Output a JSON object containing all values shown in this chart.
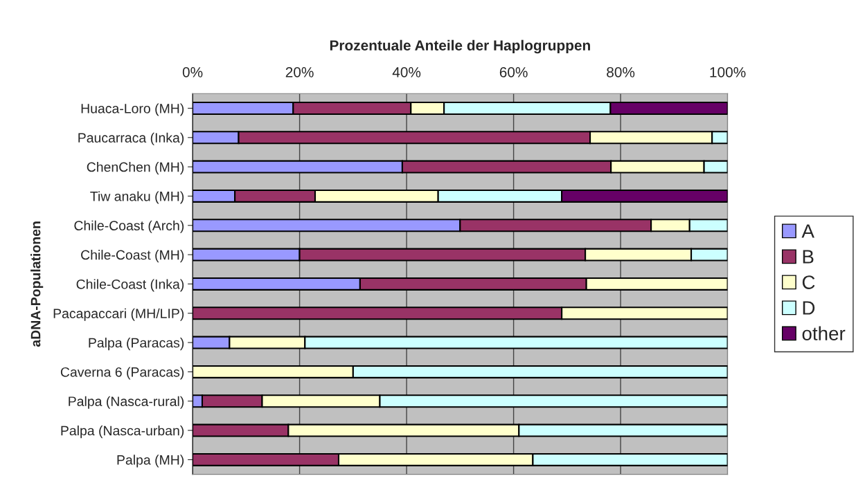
{
  "chart_data": {
    "type": "bar",
    "orientation": "horizontal",
    "stacked": true,
    "title": "Prozentuale Anteile der Haplogruppen",
    "ylabel": "aDNA-Populationen",
    "categories": [
      "Huaca-Loro (MH)",
      "Paucarraca (Inka)",
      "ChenChen (MH)",
      "Tiw anaku (MH)",
      "Chile-Coast (Arch)",
      "Chile-Coast (MH)",
      "Chile-Coast (Inka)",
      "Pacapaccari (MH/LIP)",
      "Palpa (Paracas)",
      "Caverna 6 (Paracas)",
      "Palpa (Nasca-rural)",
      "Palpa (Nasca-urban)",
      "Palpa (MH)"
    ],
    "series": [
      {
        "name": "A",
        "color": "#9999ff",
        "values": [
          18.8,
          8.6,
          39.2,
          7.9,
          50,
          20,
          31.3,
          0,
          6.9,
          0,
          1.8,
          0,
          0
        ]
      },
      {
        "name": "B",
        "color": "#993366",
        "values": [
          22,
          65.7,
          39,
          15,
          35.7,
          53.4,
          42.3,
          69,
          0,
          0,
          11.2,
          17.9,
          27.3
        ]
      },
      {
        "name": "C",
        "color": "#ffffcc",
        "values": [
          6.2,
          22.8,
          17.4,
          23,
          7.2,
          19.8,
          26.4,
          31,
          14.1,
          30,
          22,
          43.1,
          36.3
        ]
      },
      {
        "name": "D",
        "color": "#ccffff",
        "values": [
          31.1,
          2.9,
          4.4,
          23.1,
          7.1,
          6.8,
          0,
          0,
          79,
          70,
          65,
          39,
          36.4
        ]
      },
      {
        "name": "other",
        "color": "#660066",
        "values": [
          21.9,
          0,
          0,
          31,
          0,
          0,
          0,
          0,
          0,
          0,
          0,
          0,
          0
        ]
      }
    ],
    "xlim": [
      0,
      100
    ],
    "xticks": [
      {
        "value": 0,
        "label": "0%"
      },
      {
        "value": 20,
        "label": "20%"
      },
      {
        "value": 40,
        "label": "40%"
      },
      {
        "value": 60,
        "label": "60%"
      },
      {
        "value": 80,
        "label": "80%"
      },
      {
        "value": 100,
        "label": "100%"
      }
    ],
    "grid": "x",
    "legend": "right"
  }
}
